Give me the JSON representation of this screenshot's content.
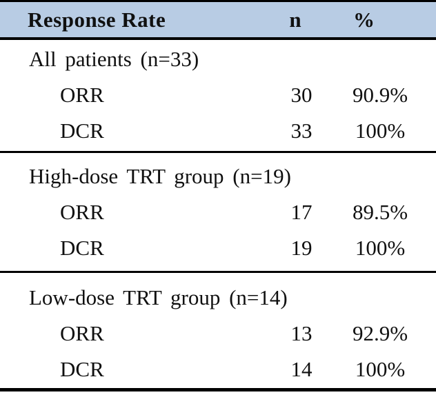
{
  "table": {
    "header_bg": "#b8cce4",
    "border_color": "#000000",
    "header": {
      "col_label": "Response Rate",
      "col_n": "n",
      "col_pct": "%"
    },
    "sections": [
      {
        "label": "All patients (n=33)",
        "rows": [
          {
            "label": "ORR",
            "n": "30",
            "pct": "90.9%"
          },
          {
            "label": "DCR",
            "n": "33",
            "pct": "100%"
          }
        ]
      },
      {
        "label": "High-dose TRT group (n=19)",
        "rows": [
          {
            "label": "ORR",
            "n": "17",
            "pct": "89.5%"
          },
          {
            "label": "DCR",
            "n": "19",
            "pct": "100%"
          }
        ]
      },
      {
        "label": "Low-dose TRT group (n=14)",
        "rows": [
          {
            "label": "ORR",
            "n": "13",
            "pct": "92.9%"
          },
          {
            "label": "DCR",
            "n": "14",
            "pct": "100%"
          }
        ]
      }
    ]
  }
}
